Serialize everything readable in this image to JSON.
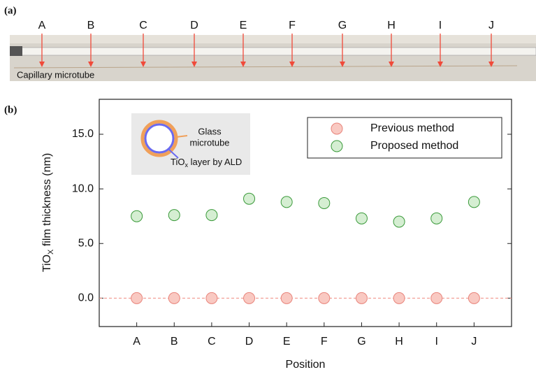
{
  "panel_a": {
    "label": "(a)",
    "positions": [
      "A",
      "B",
      "C",
      "D",
      "E",
      "F",
      "G",
      "H",
      "I",
      "J"
    ],
    "caption": "Capillary microtube"
  },
  "chart_data": {
    "type": "scatter",
    "panel_label": "(b)",
    "x_label": "Position",
    "y_label_parts": [
      "TiO",
      "X",
      " film thickness (nm)"
    ],
    "categories": [
      "A",
      "B",
      "C",
      "D",
      "E",
      "F",
      "G",
      "H",
      "I",
      "J"
    ],
    "series": [
      {
        "name": "Previous method",
        "color": "#e8837a",
        "fill": "#f9c9c2",
        "values": [
          0,
          0,
          0,
          0,
          0,
          0,
          0,
          0,
          0,
          0
        ]
      },
      {
        "name": "Proposed method",
        "color": "#3a9a3a",
        "fill": "#d5eed2",
        "values": [
          7.5,
          7.6,
          7.6,
          9.1,
          8.8,
          8.7,
          7.3,
          7.0,
          7.3,
          8.8
        ]
      }
    ],
    "reference_line": {
      "value": 0,
      "color": "#f08a80"
    },
    "ylim": [
      -2.6,
      18.2
    ],
    "yticks": [
      {
        "value": 0,
        "label": "0.0"
      },
      {
        "value": 5,
        "label": "5.0"
      },
      {
        "value": 10,
        "label": "10.0"
      },
      {
        "value": 15,
        "label": "15.0"
      }
    ],
    "legend": "upper right",
    "inset": {
      "outer_label": [
        "Glass",
        "microtube"
      ],
      "inner_label_parts": [
        "TiO",
        "x",
        " layer by ALD"
      ]
    }
  }
}
